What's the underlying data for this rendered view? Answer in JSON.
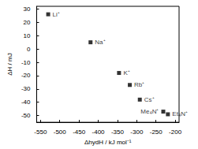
{
  "chart_data": {
    "type": "scatter",
    "x_label": "ΔhydH / kJ mol⁻¹",
    "y_label": "ΔH / mJ",
    "labels": [
      "Li⁺",
      "Na⁺",
      "K⁺",
      "Rb⁺",
      "Cs⁺",
      "Me₄N⁺",
      "Et₄N⁺"
    ],
    "x": [
      -530,
      -420,
      -346,
      -318,
      -292,
      -231,
      -219
    ],
    "values": [
      26,
      5,
      -18,
      -27,
      -38,
      -47,
      -49
    ],
    "color": "#000000",
    "marker": "square",
    "xlim": [
      -560,
      -190
    ],
    "xticks": [
      -550,
      -500,
      -450,
      -400,
      -350,
      -300,
      -250,
      -200
    ],
    "ylim": [
      -55,
      32
    ],
    "yticks": [
      -50,
      -40,
      -30,
      -20,
      -10,
      0,
      10,
      20,
      30
    ],
    "grid": false
  }
}
